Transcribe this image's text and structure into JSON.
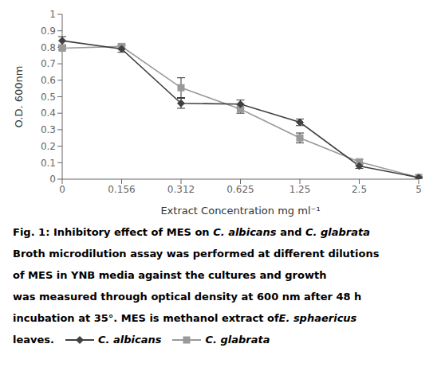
{
  "chart_data": {
    "type": "line",
    "title": "Fig. 1: Inhibitory effect of MES on C. albicans and C. glabrata",
    "annotations": [
      "Broth microdilution assay was performed at different dilutions",
      "of MES in YNB media against the cultures and growth",
      "was measured through optical density at 600 nm after 48 h",
      "incubation at 35°. MES is methanol extract of E. sphaericus",
      "leaves."
    ],
    "x_label": "Extract Concentration mg ml⁻¹",
    "y_label": "O.D. 600nm",
    "categories": [
      "0",
      "0.156",
      "0.312",
      "0.625",
      "1.25",
      "2.5",
      "5"
    ],
    "series": [
      {
        "name": "C. albicans",
        "color": "#404040",
        "marker": "diamond",
        "values": [
          0.84,
          0.79,
          0.46,
          0.455,
          0.345,
          0.08,
          0.01
        ],
        "yerr": [
          0.025,
          0.02,
          0.03,
          0.025,
          0.02,
          0.015,
          0.005
        ]
      },
      {
        "name": "C. glabrata",
        "color": "#999999",
        "marker": "square",
        "values": [
          0.795,
          0.805,
          0.555,
          0.425,
          0.25,
          0.105,
          0.01
        ],
        "yerr": [
          0.01,
          0.015,
          0.06,
          0.025,
          0.03,
          0.015,
          0.005
        ]
      }
    ],
    "ylim": [
      0,
      1.0
    ],
    "yticks": [
      0,
      0.1,
      0.2,
      0.3,
      0.4,
      0.5,
      0.6,
      0.7,
      0.8,
      0.9,
      1
    ],
    "grid": false,
    "legend": "bottom"
  }
}
